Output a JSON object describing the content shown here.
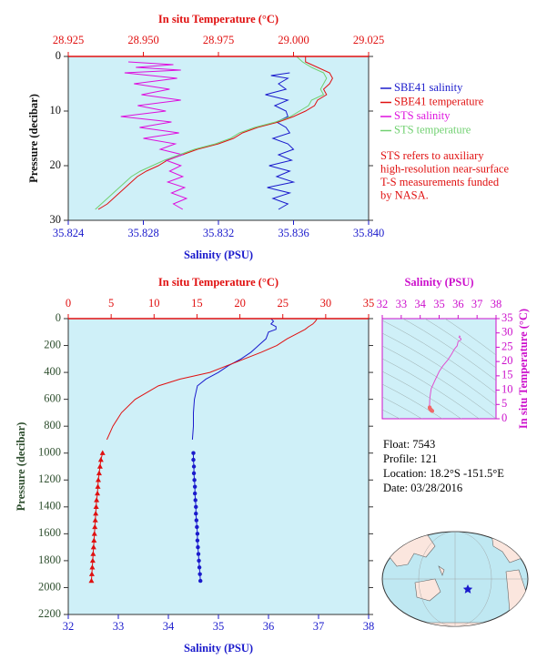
{
  "chart_data": [
    {
      "type": "profile",
      "xlabel": "Salinity (PSU)",
      "x2label": "In situ Temperature (°C)",
      "ylabel": "Pressure (decibar)",
      "xlim": [
        35.824,
        35.84
      ],
      "xticks": [
        35.824,
        35.828,
        35.832,
        35.836,
        {
          "value": 35.84,
          "label": "35.840"
        }
      ],
      "x2lim": [
        28.925,
        29.025
      ],
      "x2ticks": [
        28.925,
        {
          "value": 28.95,
          "label": "28.950"
        },
        28.975,
        {
          "value": 29.0,
          "label": "29.000"
        },
        29.025
      ],
      "ylim": [
        0,
        30
      ],
      "y_inverted": true,
      "yticks": [
        0,
        10,
        20,
        30
      ],
      "x_color": "#1a1acc",
      "x2_color": "#e01010",
      "y_color": "#111111",
      "background": "#cff0f8",
      "legend": "right",
      "series": [
        {
          "name": "SBE41 salinity",
          "color": "#1a1acc",
          "axis": "x",
          "pressure": [
            3,
            3.5,
            4,
            5,
            6,
            7,
            8,
            9,
            10,
            11,
            12,
            13,
            14,
            15,
            16,
            17,
            18,
            19,
            20,
            21,
            22,
            23,
            24,
            25,
            26,
            27,
            28
          ],
          "values": [
            35.8358,
            35.8348,
            35.8357,
            35.8352,
            35.8356,
            35.8345,
            35.8357,
            35.835,
            35.8356,
            35.8357,
            35.8351,
            35.8356,
            35.8358,
            35.8349,
            35.8357,
            35.836,
            35.8352,
            35.8359,
            35.8347,
            35.8358,
            35.8351,
            35.836,
            35.8346,
            35.8358,
            35.8349,
            35.8357,
            35.8352
          ]
        },
        {
          "name": "SBE41 temperature",
          "color": "#e01010",
          "axis": "x2",
          "pressure": [
            0,
            1,
            2,
            3,
            4,
            5,
            6,
            7,
            8,
            9,
            10,
            11,
            12,
            13,
            14,
            15,
            16,
            17,
            18,
            19,
            20,
            21,
            22,
            23,
            24,
            25,
            26,
            27,
            28
          ],
          "values": [
            29.004,
            29.004,
            29.008,
            29.012,
            29.013,
            29.012,
            29.01,
            29.011,
            29.008,
            29.007,
            29.004,
            29.0,
            28.995,
            28.988,
            28.983,
            28.98,
            28.975,
            28.968,
            28.963,
            28.958,
            28.955,
            28.951,
            28.948,
            28.946,
            28.944,
            28.942,
            28.94,
            28.938,
            28.935
          ]
        },
        {
          "name": "STS salinity",
          "color": "#dd10dd",
          "axis": "x",
          "pressure": [
            1,
            1.5,
            2,
            2.5,
            3,
            4,
            5,
            6,
            7,
            8,
            9,
            10,
            11,
            12,
            13,
            14,
            15,
            16,
            17,
            18,
            19,
            20,
            21,
            22,
            23,
            24,
            25,
            26,
            27,
            28
          ],
          "values": [
            35.8272,
            35.8296,
            35.8276,
            35.83,
            35.827,
            35.8298,
            35.8275,
            35.8294,
            35.8279,
            35.83,
            35.8277,
            35.8292,
            35.8268,
            35.8295,
            35.8278,
            35.8299,
            35.828,
            35.8297,
            35.8289,
            35.8301,
            35.8292,
            35.83,
            35.8294,
            35.8301,
            35.8293,
            35.8302,
            35.8295,
            35.8303,
            35.8296,
            35.8301
          ]
        },
        {
          "name": "STS temperature",
          "color": "#70d070",
          "axis": "x2",
          "pressure": [
            0,
            1,
            2,
            3,
            4,
            5,
            6,
            7,
            8,
            9,
            10,
            11,
            12,
            13,
            14,
            15,
            16,
            17,
            18,
            19,
            20,
            21,
            22,
            23,
            24,
            25,
            26,
            27,
            28
          ],
          "values": [
            29.001,
            29.003,
            29.006,
            29.01,
            29.011,
            29.01,
            29.009,
            29.01,
            29.006,
            29.005,
            29.002,
            28.999,
            28.994,
            28.987,
            28.982,
            28.979,
            28.974,
            28.967,
            28.962,
            28.957,
            28.953,
            28.949,
            28.946,
            28.944,
            28.942,
            28.94,
            28.938,
            28.936,
            28.934
          ]
        }
      ],
      "annotation": [
        "STS refers to auxiliary",
        "high-resolution near-surface",
        "T-S measurements funded",
        "by NASA."
      ]
    },
    {
      "type": "profile",
      "xlabel": "Salinity (PSU)",
      "x2label": "In situ Temperature (°C)",
      "ylabel": "Pressure (decibar)",
      "xlim": [
        32,
        38
      ],
      "xticks": [
        32,
        33,
        34,
        35,
        36,
        37,
        38
      ],
      "x2lim": [
        0,
        35
      ],
      "x2ticks": [
        0,
        5,
        10,
        15,
        20,
        25,
        30,
        35
      ],
      "ylim": [
        0,
        2200
      ],
      "y_inverted": true,
      "yticks": [
        0,
        200,
        400,
        600,
        800,
        1000,
        1200,
        1400,
        1600,
        1800,
        2000,
        2200
      ],
      "x_color": "#1a1acc",
      "x2_color": "#e01010",
      "y_color": "#2f4f2f",
      "background": "#cff0f8",
      "series": [
        {
          "color": "#1a1acc",
          "axis": "x",
          "marker": "circle",
          "pressure": [
            0,
            20,
            40,
            60,
            80,
            100,
            150,
            200,
            250,
            300,
            350,
            400,
            450,
            500,
            600,
            700,
            800,
            900
          ],
          "values": [
            36.05,
            36.1,
            36.05,
            36.15,
            36.15,
            36.0,
            35.95,
            35.8,
            35.65,
            35.45,
            35.2,
            35.0,
            34.75,
            34.58,
            34.52,
            34.5,
            34.5,
            34.48
          ],
          "marker_pressure": [
            1000,
            1050,
            1100,
            1150,
            1200,
            1250,
            1300,
            1350,
            1400,
            1450,
            1500,
            1550,
            1600,
            1650,
            1700,
            1750,
            1800,
            1850,
            1900,
            1950
          ],
          "marker_values": [
            34.5,
            34.5,
            34.51,
            34.51,
            34.52,
            34.53,
            34.53,
            34.54,
            34.55,
            34.55,
            34.56,
            34.57,
            34.58,
            34.58,
            34.59,
            34.6,
            34.61,
            34.62,
            34.63,
            34.64
          ]
        },
        {
          "color": "#e01010",
          "axis": "x2",
          "marker": "triangle",
          "pressure": [
            0,
            20,
            40,
            60,
            80,
            100,
            150,
            200,
            250,
            300,
            350,
            400,
            450,
            500,
            600,
            700,
            800,
            900
          ],
          "values": [
            29.0,
            28.8,
            28.5,
            28.0,
            27.6,
            27.0,
            25.5,
            24.3,
            22.5,
            20.5,
            18.5,
            16.5,
            13.0,
            10.5,
            7.8,
            6.2,
            5.2,
            4.5
          ],
          "marker_pressure": [
            1000,
            1050,
            1100,
            1150,
            1200,
            1250,
            1300,
            1350,
            1400,
            1450,
            1500,
            1550,
            1600,
            1650,
            1700,
            1750,
            1800,
            1850,
            1900,
            1950
          ],
          "marker_values": [
            4.0,
            3.8,
            3.7,
            3.6,
            3.5,
            3.45,
            3.4,
            3.3,
            3.25,
            3.2,
            3.15,
            3.1,
            3.05,
            3.0,
            2.95,
            2.9,
            2.85,
            2.8,
            2.75,
            2.7
          ]
        }
      ]
    },
    {
      "type": "ts",
      "xlabel": "Salinity (PSU)",
      "ylabel": "In situ Temperature (°C)",
      "xlim": [
        32,
        38
      ],
      "xticks": [
        32,
        33,
        34,
        35,
        36,
        37,
        38
      ],
      "ylim": [
        0,
        35
      ],
      "yticks": [
        0,
        5,
        10,
        15,
        20,
        25,
        30,
        35
      ],
      "axis_color": "#cc10cc",
      "color": "#e050d0",
      "marker_color": "#f06a6a",
      "background": "#cff0f8"
    }
  ],
  "float_info": [
    "Float:  7543",
    "Profile:  121",
    "Location:  18.2°S  -151.5°E",
    "Date:  03/28/2016"
  ]
}
